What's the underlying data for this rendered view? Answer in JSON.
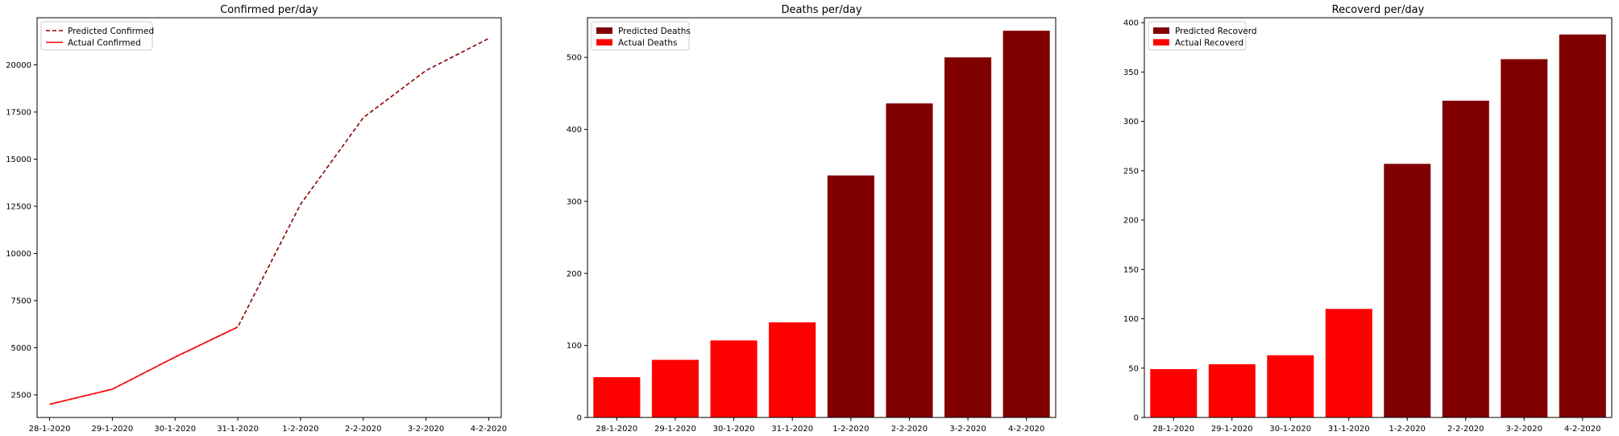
{
  "chart_data": [
    {
      "type": "line",
      "title": "Confirmed per/day",
      "xlabel": "",
      "ylabel": "",
      "categories": [
        "28-1-2020",
        "29-1-2020",
        "30-1-2020",
        "31-1-2020",
        "1-2-2020",
        "2-2-2020",
        "3-2-2020",
        "4-2-2020"
      ],
      "ylim": [
        1300,
        22500
      ],
      "yticks": [
        2500,
        5000,
        7500,
        10000,
        12500,
        15000,
        17500,
        20000
      ],
      "legend_position": "top-left",
      "grid": false,
      "series": [
        {
          "name": "Predicted Confirmed",
          "style": "dashed",
          "color": "#8b0000",
          "values": [
            2000,
            2800,
            4500,
            6100,
            12600,
            17200,
            19700,
            21400
          ]
        },
        {
          "name": "Actual Confirmed",
          "style": "solid",
          "color": "#ff0000",
          "values": [
            2000,
            2800,
            4500,
            6100,
            null,
            null,
            null,
            null
          ]
        }
      ]
    },
    {
      "type": "bar",
      "title": "Deaths per/day",
      "xlabel": "",
      "ylabel": "",
      "categories": [
        "28-1-2020",
        "29-1-2020",
        "30-1-2020",
        "31-1-2020",
        "1-2-2020",
        "2-2-2020",
        "3-2-2020",
        "4-2-2020"
      ],
      "ylim": [
        0,
        555
      ],
      "yticks": [
        0,
        100,
        200,
        300,
        400,
        500
      ],
      "legend_position": "top-left",
      "grid": false,
      "series": [
        {
          "name": "Predicted Deaths",
          "color": "#800000",
          "values": [
            null,
            null,
            null,
            null,
            336,
            436,
            500,
            537
          ]
        },
        {
          "name": "Actual Deaths",
          "color": "#ff0000",
          "values": [
            56,
            80,
            107,
            132,
            null,
            null,
            null,
            null
          ]
        }
      ]
    },
    {
      "type": "bar",
      "title": "Recoverd per/day",
      "xlabel": "",
      "ylabel": "",
      "categories": [
        "28-1-2020",
        "29-1-2020",
        "30-1-2020",
        "31-1-2020",
        "1-2-2020",
        "2-2-2020",
        "3-2-2020",
        "4-2-2020"
      ],
      "ylim": [
        0,
        405
      ],
      "yticks": [
        0,
        50,
        100,
        150,
        200,
        250,
        300,
        350,
        400
      ],
      "legend_position": "top-left",
      "grid": false,
      "series": [
        {
          "name": "Predicted Recoverd",
          "color": "#800000",
          "values": [
            null,
            null,
            null,
            null,
            257,
            321,
            363,
            388
          ]
        },
        {
          "name": "Actual Recoverd",
          "color": "#ff0000",
          "values": [
            49,
            54,
            63,
            110,
            null,
            null,
            null,
            null
          ]
        }
      ]
    }
  ]
}
